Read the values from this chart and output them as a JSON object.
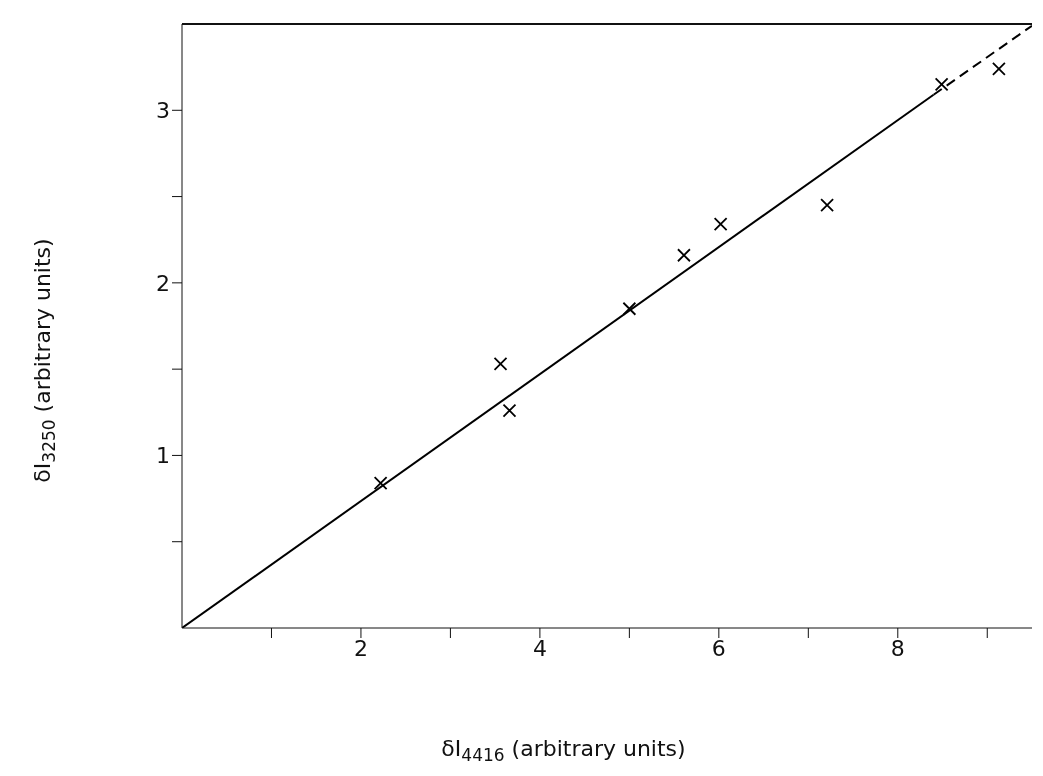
{
  "chart_data": {
    "type": "scatter",
    "xlabel": "δI$_{4416}$ (arbitrary units)",
    "ylabel": "δI$_{3250}$ (arbitrary units)",
    "xlim": [
      0,
      9.5
    ],
    "ylim": [
      0,
      3.5
    ],
    "xticks": [
      {
        "value": 1,
        "label": null
      },
      2,
      {
        "value": 3,
        "label": null
      },
      4,
      {
        "value": 5,
        "label": null
      },
      6,
      {
        "value": 7,
        "label": null
      },
      8,
      {
        "value": 9,
        "label": null
      }
    ],
    "yticks": [
      {
        "value": 0.5,
        "label": null
      },
      1,
      {
        "value": 1.5,
        "label": null
      },
      2,
      {
        "value": 2.5,
        "label": null
      },
      3
    ],
    "grid": false,
    "legend": false,
    "series": [
      {
        "marker": "cross",
        "color": "#000000",
        "x": [
          2.22,
          3.56,
          3.66,
          5.0,
          5.61,
          6.02,
          7.21,
          8.49,
          9.13
        ],
        "values": [
          0.84,
          1.53,
          1.26,
          1.85,
          2.16,
          2.34,
          2.45,
          3.15,
          3.24
        ]
      },
      {
        "type": "line",
        "color": "#000000",
        "line_style": "solid",
        "x": [
          0,
          8.4
        ],
        "values": [
          0,
          3.09
        ]
      },
      {
        "type": "line",
        "color": "#000000",
        "line_style": "dashed",
        "x": [
          8.4,
          9.5
        ],
        "values": [
          3.09,
          3.49
        ]
      }
    ]
  }
}
